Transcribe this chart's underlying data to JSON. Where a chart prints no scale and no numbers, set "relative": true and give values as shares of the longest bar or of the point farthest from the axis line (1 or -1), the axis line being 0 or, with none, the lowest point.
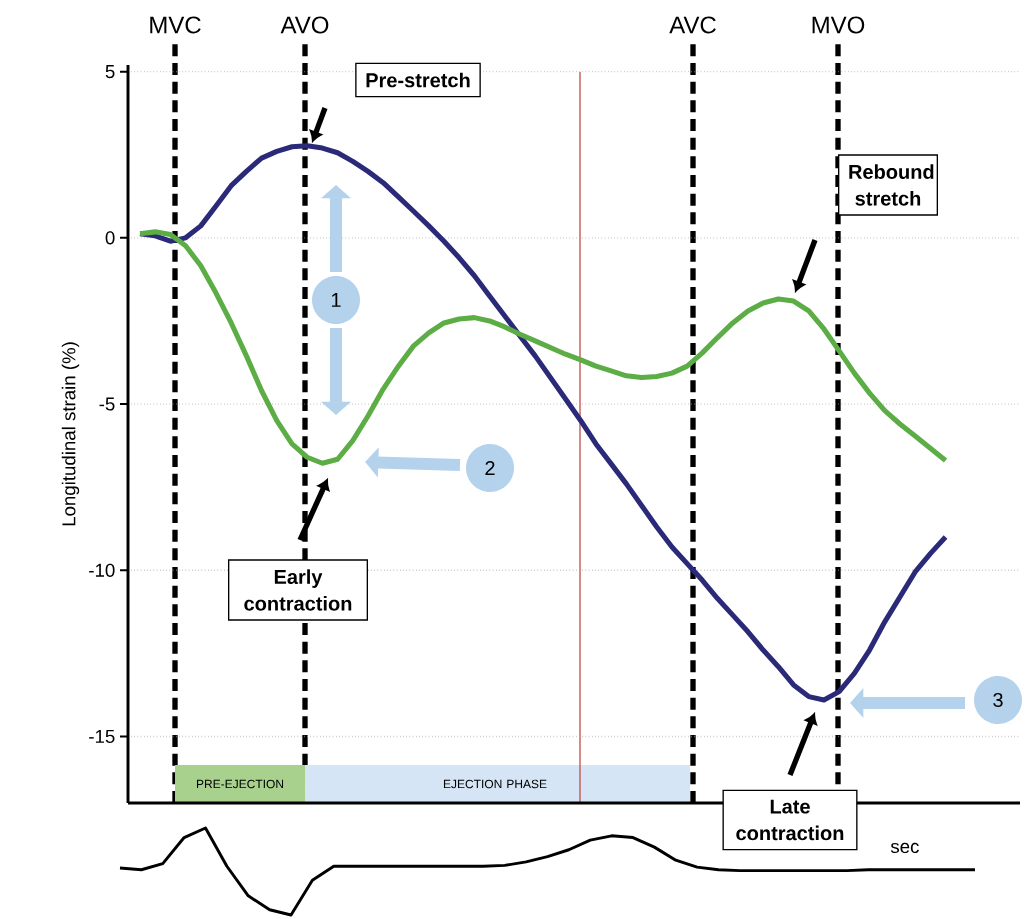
{
  "chart_data": [
    {
      "type": "line",
      "ylabel": "Longitudinal strain (%)",
      "categories": [
        null,
        null,
        null,
        null,
        null,
        null,
        null,
        null,
        null,
        null,
        null,
        null,
        null,
        null,
        null,
        null,
        null,
        null,
        null,
        null,
        null,
        null,
        null,
        null,
        null,
        null,
        null,
        null,
        null,
        null,
        null,
        null,
        null,
        null,
        null,
        null,
        null,
        null,
        null,
        null,
        null,
        null,
        null,
        null,
        null,
        null,
        null,
        null,
        null,
        null,
        null,
        null,
        null,
        null
      ],
      "ylim": [
        -17,
        5.2
      ],
      "yticks": [
        -15,
        -10,
        -5,
        0,
        5
      ],
      "grid": "y",
      "line_style": "solid",
      "series": [
        {
          "color": "#2b2a78",
          "values": [
            0.12,
            0.06,
            -0.1,
            0,
            0.36,
            0.96,
            1.57,
            2.0,
            2.4,
            2.6,
            2.74,
            2.77,
            2.7,
            2.56,
            2.3,
            2.0,
            1.66,
            1.23,
            0.8,
            0.36,
            -0.1,
            -0.6,
            -1.14,
            -1.75,
            -2.35,
            -2.95,
            -3.55,
            -4.2,
            -4.85,
            -5.5,
            -6.2,
            -6.8,
            -7.4,
            -8.05,
            -8.7,
            -9.3,
            -9.8,
            -10.3,
            -10.85,
            -11.35,
            -11.85,
            -12.4,
            -12.9,
            -13.45,
            -13.8,
            -13.9,
            -13.65,
            -13.1,
            -12.4,
            -11.55,
            -10.8,
            -10.05,
            -9.5,
            -9.0
          ]
        },
        {
          "color": "#5cad46",
          "values": [
            0.12,
            0.18,
            0.1,
            -0.24,
            -0.84,
            -1.66,
            -2.56,
            -3.55,
            -4.6,
            -5.5,
            -6.2,
            -6.6,
            -6.78,
            -6.66,
            -6.1,
            -5.36,
            -4.55,
            -3.86,
            -3.25,
            -2.86,
            -2.56,
            -2.44,
            -2.4,
            -2.5,
            -2.68,
            -2.9,
            -3.1,
            -3.3,
            -3.5,
            -3.67,
            -3.86,
            -4.0,
            -4.15,
            -4.2,
            -4.17,
            -4.07,
            -3.86,
            -3.46,
            -3.0,
            -2.56,
            -2.2,
            -1.96,
            -1.84,
            -1.9,
            -2.2,
            -2.74,
            -3.4,
            -4.07,
            -4.67,
            -5.2,
            -5.6,
            -5.96,
            -6.33,
            -6.7
          ]
        }
      ],
      "annotations": [
        "MVC",
        "AVO",
        "AVC",
        "MVO",
        "PRE-EJECTION",
        "EJECTION PHASE",
        "Pre-stretch",
        "Early contraction",
        "Rebound stretch",
        "Late contraction",
        "1",
        "2",
        "3"
      ]
    },
    {
      "type": "line",
      "relative": true,
      "xlabel": "sec",
      "categories": [
        null,
        null,
        null,
        null,
        null,
        null,
        null,
        null,
        null,
        null,
        null,
        null,
        null,
        null,
        null,
        null,
        null,
        null,
        null,
        null,
        null,
        null,
        null,
        null,
        null,
        null,
        null,
        null,
        null,
        null,
        null,
        null,
        null,
        null,
        null,
        null,
        null,
        null,
        null,
        null,
        null
      ],
      "series": [
        {
          "color": "#000000",
          "values": [
            0.54,
            0.52,
            0.59,
            0.89,
            1.0,
            0.56,
            0.22,
            0.06,
            0,
            0.4,
            0.56,
            0.56,
            0.56,
            0.56,
            0.56,
            0.56,
            0.56,
            0.56,
            0.57,
            0.61,
            0.67,
            0.75,
            0.86,
            0.91,
            0.89,
            0.78,
            0.63,
            0.55,
            0.52,
            0.51,
            0.51,
            0.51,
            0.51,
            0.51,
            0.51,
            0.52,
            0.52,
            0.52,
            0.52,
            0.52,
            0.52
          ]
        }
      ]
    }
  ]
}
